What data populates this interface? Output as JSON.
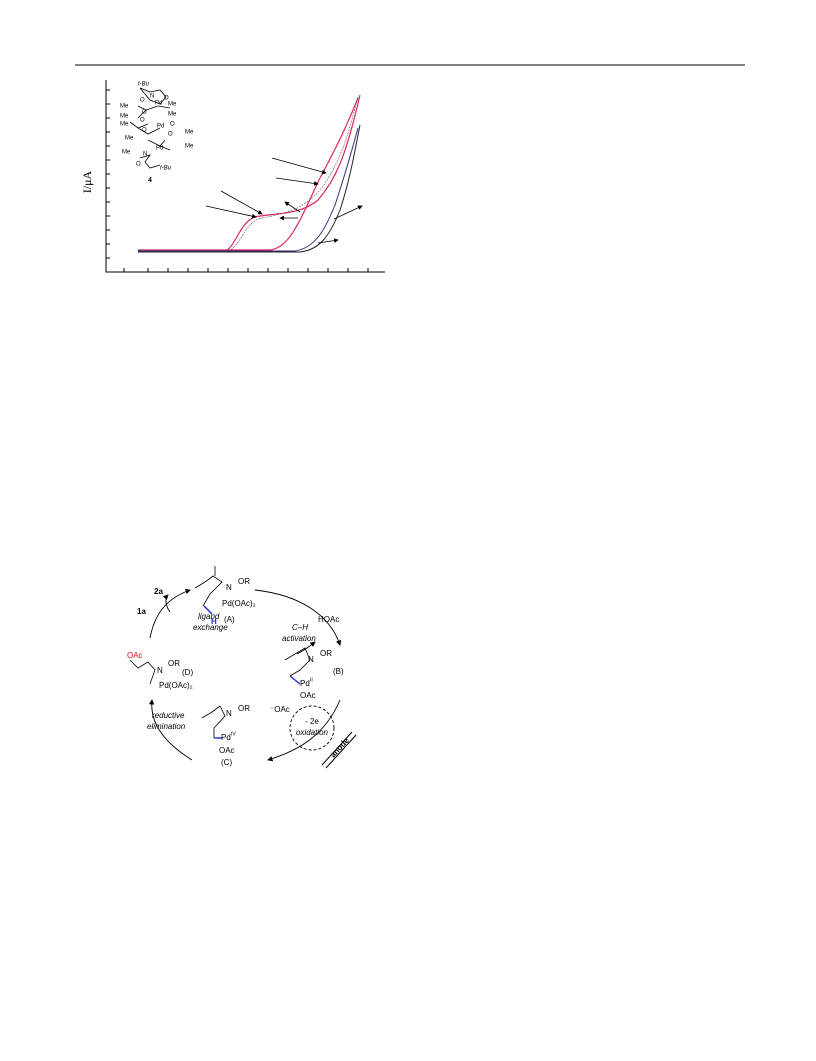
{
  "figure_cv": {
    "y_axis_label": "I/μA",
    "compound_number": "4",
    "structure_labels": [
      "t-Bu",
      "O",
      "N",
      "Me",
      "Me",
      "Pd",
      "Me",
      "O",
      "O",
      "Me",
      "Me",
      "O",
      "O",
      "Pd",
      "O",
      "O",
      "Me",
      "Me",
      "Me",
      "Me",
      "N",
      "Pd",
      "O",
      "t-Bu"
    ]
  },
  "figure_cycle": {
    "reagent_out": "2a",
    "reagent_in": "1a",
    "step_ligand_1": "ligand",
    "step_ligand_2": "exchange",
    "A": {
      "n": "N",
      "or": "OR",
      "pd": "Pd(OAc)₂",
      "h": "H",
      "label": "(A)"
    },
    "step_ch_1": "C–H",
    "step_ch_2": "activation",
    "byproduct": "HOAc",
    "B": {
      "n": "N",
      "or": "OR",
      "pd": "Pd",
      "ox": "II",
      "oac": "OAc",
      "label": "(B)"
    },
    "acetate": "⁻OAc",
    "step_ox_1": "- 2e",
    "step_ox_2": "oxidation",
    "electrode": "anode",
    "C": {
      "n": "N",
      "or": "OR",
      "pd": "Pd",
      "ox": "IV",
      "oac": "OAc",
      "label": "(C)"
    },
    "step_re_1": "reductive",
    "step_re_2": "elimination",
    "D": {
      "oac": "OAc",
      "n": "N",
      "or": "OR",
      "pd": "Pd(OAc)₂",
      "label": "(D)"
    }
  }
}
